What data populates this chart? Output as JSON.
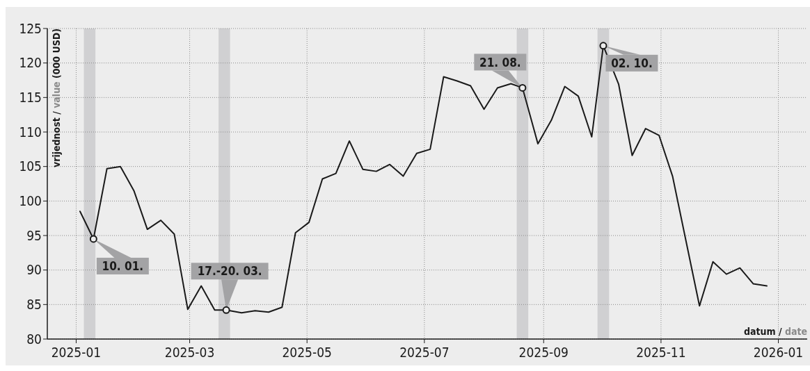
{
  "chart_data": {
    "type": "line",
    "ylabel": "vrijednost / value (000 USD)",
    "xlabel": "datum / date",
    "x": [
      "2025-01-03",
      "2025-01-10",
      "2025-01-17",
      "2025-01-24",
      "2025-01-31",
      "2025-02-07",
      "2025-02-14",
      "2025-02-21",
      "2025-02-28",
      "2025-03-07",
      "2025-03-14",
      "2025-03-20",
      "2025-03-28",
      "2025-04-04",
      "2025-04-11",
      "2025-04-18",
      "2025-04-25",
      "2025-05-02",
      "2025-05-09",
      "2025-05-16",
      "2025-05-23",
      "2025-05-30",
      "2025-06-06",
      "2025-06-13",
      "2025-06-20",
      "2025-06-27",
      "2025-07-04",
      "2025-07-11",
      "2025-07-18",
      "2025-07-25",
      "2025-08-01",
      "2025-08-08",
      "2025-08-15",
      "2025-08-21",
      "2025-08-29",
      "2025-09-05",
      "2025-09-12",
      "2025-09-19",
      "2025-09-26",
      "2025-10-02",
      "2025-10-10",
      "2025-10-17",
      "2025-10-24",
      "2025-10-31",
      "2025-11-07",
      "2025-11-14",
      "2025-11-21",
      "2025-11-28",
      "2025-12-05",
      "2025-12-12",
      "2025-12-19",
      "2025-12-26"
    ],
    "series": [
      {
        "color": "#1a1a1a",
        "values": [
          98.5,
          94.5,
          104.7,
          105.0,
          101.5,
          95.9,
          97.2,
          95.2,
          84.3,
          87.7,
          84.2,
          84.2,
          83.8,
          84.1,
          83.9,
          84.6,
          95.4,
          96.9,
          103.2,
          104.0,
          108.7,
          104.6,
          104.3,
          105.3,
          103.6,
          106.9,
          107.5,
          118.0,
          117.4,
          116.7,
          113.3,
          116.4,
          117.0,
          116.4,
          108.3,
          111.7,
          116.6,
          115.2,
          109.3,
          122.5,
          116.9,
          106.6,
          110.5,
          109.5,
          103.6,
          94.2,
          84.8,
          91.2,
          89.4,
          90.3,
          88.0,
          87.7
        ]
      }
    ],
    "xlim": [
      "2024-12-17",
      "2026-01-16"
    ],
    "xticks": [
      "2025-01",
      "2025-03",
      "2025-05",
      "2025-07",
      "2025-09",
      "2025-11",
      "2026-01"
    ],
    "ylim": [
      80,
      125
    ],
    "yticks": [
      80,
      85,
      90,
      95,
      100,
      105,
      110,
      115,
      120,
      125
    ],
    "grid": true,
    "bands": [
      {
        "axis": "x",
        "from": "2025-01-05",
        "to": "2025-01-11",
        "color": "#d0d0d2"
      },
      {
        "axis": "x",
        "from": "2025-03-16",
        "to": "2025-03-22",
        "color": "#d0d0d2"
      },
      {
        "axis": "x",
        "from": "2025-08-18",
        "to": "2025-08-24",
        "color": "#d0d0d2"
      },
      {
        "axis": "x",
        "from": "2025-09-29",
        "to": "2025-10-05",
        "color": "#d0d0d2"
      }
    ],
    "annotations": [
      {
        "text": "10. 01.",
        "x": "2025-01-10",
        "y": 94.5
      },
      {
        "text": "17.-20. 03.",
        "x": "2025-03-20",
        "y": 84.2
      },
      {
        "text": "21. 08.",
        "x": "2025-08-21",
        "y": 116.4
      },
      {
        "text": "02. 10.",
        "x": "2025-10-02",
        "y": 122.5
      }
    ],
    "marker": "none"
  }
}
